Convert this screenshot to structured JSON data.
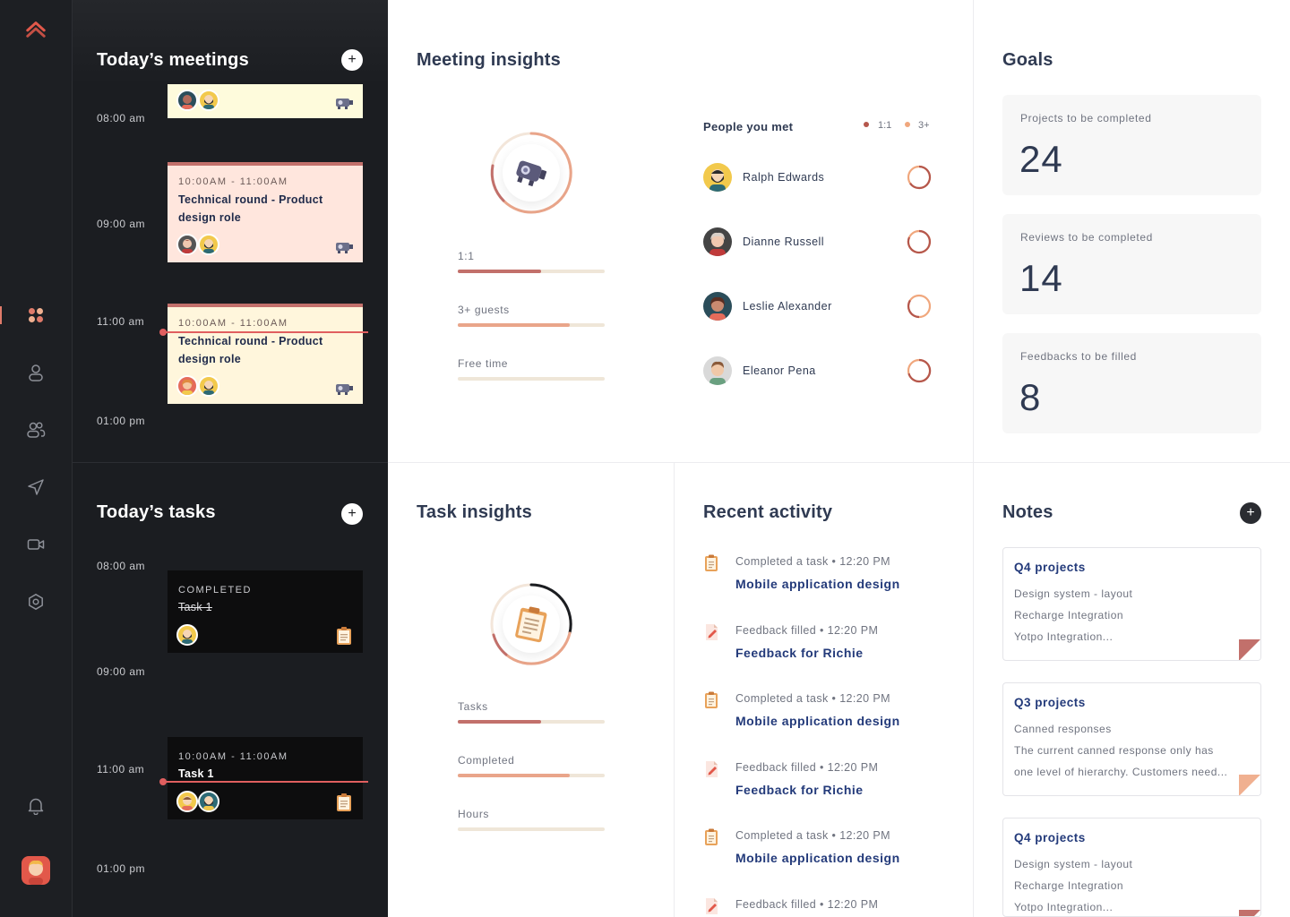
{
  "meetings": {
    "title": "Today’s meetings",
    "times": [
      "08:00 am",
      "09:00 am",
      "11:00 am",
      "01:00 pm"
    ],
    "cards": [
      {
        "time": "",
        "title": ""
      },
      {
        "time": "10:00AM - 11:00AM",
        "title": "Technical round - Product design role"
      },
      {
        "time": "10:00AM - 11:00AM",
        "title": "Technical round - Product design role"
      }
    ]
  },
  "tasks": {
    "title": "Today’s tasks",
    "times": [
      "08:00 am",
      "09:00 am",
      "11:00 am",
      "01:00 pm"
    ],
    "cards": [
      {
        "status": "COMPLETED",
        "title": "Task 1"
      },
      {
        "time": "10:00AM - 11:00AM",
        "title": "Task 1"
      }
    ]
  },
  "meeting_insights": {
    "title": "Meeting insights",
    "bars": [
      {
        "label": "1:1",
        "progress": 0.57,
        "color": "#c2706b"
      },
      {
        "label": "3+ guests",
        "progress": 0.76,
        "color": "#e9a58a"
      },
      {
        "label": "Free time",
        "progress": 0,
        "color": "#e9a58a"
      }
    ]
  },
  "people": {
    "title": "People you met",
    "legend": [
      {
        "label": "1:1",
        "color": "#b5574c"
      },
      {
        "label": "3+",
        "color": "#f0a77d"
      }
    ],
    "items": [
      {
        "name": "Ralph Edwards"
      },
      {
        "name": "Dianne Russell"
      },
      {
        "name": "Leslie Alexander"
      },
      {
        "name": "Eleanor Pena"
      }
    ]
  },
  "goals": {
    "title": "Goals",
    "items": [
      {
        "label": "Projects to be completed",
        "value": "24"
      },
      {
        "label": "Reviews to be completed",
        "value": "14"
      },
      {
        "label": "Feedbacks to be filled",
        "value": "8"
      }
    ]
  },
  "task_insights": {
    "title": "Task insights",
    "bars": [
      {
        "label": "Tasks",
        "progress": 0.57,
        "color": "#c2706b"
      },
      {
        "label": "Completed",
        "progress": 0.76,
        "color": "#e9a58a"
      },
      {
        "label": "Hours",
        "progress": 0,
        "color": "#e9a58a"
      }
    ]
  },
  "activity": {
    "title": "Recent activity",
    "items": [
      {
        "meta": "Completed a task • 12:20 PM",
        "title": "Mobile application design",
        "icon": "clipboard-icon"
      },
      {
        "meta": "Feedback filled • 12:20 PM",
        "title": "Feedback for Richie",
        "icon": "feedback-icon"
      },
      {
        "meta": "Completed a task • 12:20 PM",
        "title": "Mobile application design",
        "icon": "clipboard-icon"
      },
      {
        "meta": "Feedback filled • 12:20 PM",
        "title": "Feedback for Richie",
        "icon": "feedback-icon"
      },
      {
        "meta": "Completed a task • 12:20 PM",
        "title": "Mobile application design",
        "icon": "clipboard-icon"
      },
      {
        "meta": "Feedback filled • 12:20 PM",
        "title": "",
        "icon": "feedback-icon"
      }
    ]
  },
  "notes": {
    "title": "Notes",
    "items": [
      {
        "title": "Q4 projects",
        "lines": [
          "Design system - layout",
          "Recharge Integration",
          "Yotpo Integration..."
        ],
        "color": "#c2706b"
      },
      {
        "title": "Q3 projects",
        "lines": [
          "Canned responses",
          "The current canned response only has",
          "one level of hierarchy. Customers need..."
        ],
        "color": "#f0b090"
      },
      {
        "title": "Q4 projects",
        "lines": [
          "Design system - layout",
          "Recharge Integration",
          "Yotpo Integration..."
        ],
        "color": "#c2706b"
      }
    ]
  }
}
